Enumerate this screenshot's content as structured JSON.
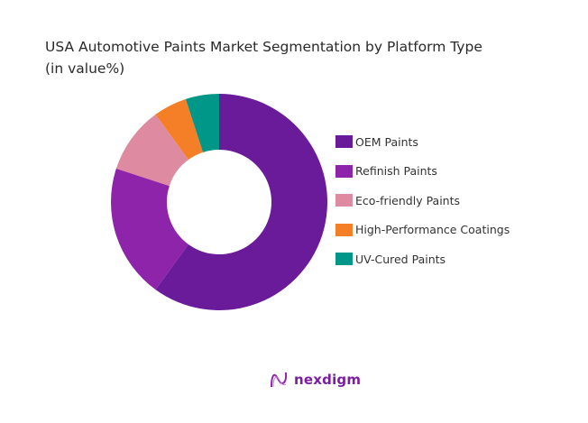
{
  "chart_data": {
    "type": "pie",
    "subtype": "donut",
    "title": "USA Automotive Paints Market Segmentation by Platform Type",
    "subtitle": "(in value%)",
    "categories": [
      "OEM Paints",
      "Refinish Paints",
      "Eco-friendly Paints",
      "High-Performance Coatings",
      "UV-Cured Paints"
    ],
    "values": [
      60,
      20,
      10,
      5,
      5
    ],
    "colors": [
      "#6a1b9a",
      "#8e24aa",
      "#de8aa0",
      "#f47f26",
      "#009688"
    ],
    "legend_position": "right"
  },
  "header": {
    "title_line1": "USA Automotive Paints Market Segmentation by Platform Type",
    "title_line2": "(in value%)"
  },
  "legend": {
    "items": [
      {
        "label": "OEM Paints",
        "color": "#6a1b9a"
      },
      {
        "label": "Refinish Paints",
        "color": "#8e24aa"
      },
      {
        "label": "Eco-friendly Paints",
        "color": "#de8aa0"
      },
      {
        "label": "High-Performance Coatings",
        "color": "#f47f26"
      },
      {
        "label": "UV-Cured Paints",
        "color": "#009688"
      }
    ]
  },
  "footer": {
    "logo_text": "nexdigm",
    "brand_color": "#7a1fa2"
  }
}
